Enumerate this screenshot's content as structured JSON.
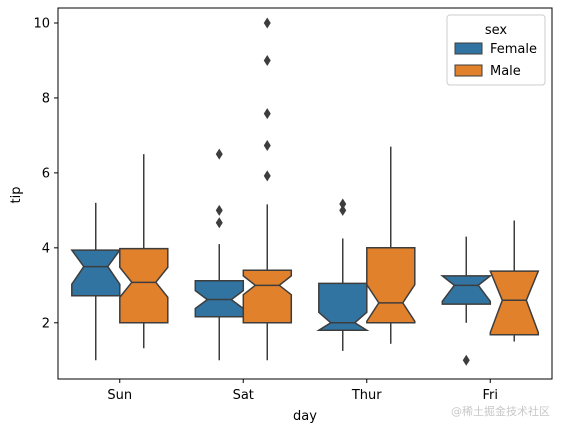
{
  "chart_data": {
    "type": "boxplot",
    "xlabel": "day",
    "ylabel": "tip",
    "categories": [
      "Sun",
      "Sat",
      "Thur",
      "Fri"
    ],
    "notched": true,
    "ylim": [
      0.5,
      10.4
    ],
    "yticks": [
      2,
      4,
      6,
      8,
      10
    ],
    "grid": false,
    "legend": {
      "title": "sex",
      "placement": "top-right"
    },
    "series": [
      {
        "name": "Female",
        "color": "#3274a1",
        "boxes": [
          {
            "min": 1.0,
            "q1": 2.72,
            "median": 3.5,
            "q3": 3.94,
            "max": 5.2,
            "notch_low": 3.03,
            "notch_high": 3.97,
            "outliers": []
          },
          {
            "min": 1.0,
            "q1": 2.16,
            "median": 2.62,
            "q3": 3.12,
            "max": 4.1,
            "notch_low": 2.38,
            "notch_high": 2.86,
            "outliers": [
              4.67,
              5.0,
              6.5
            ]
          },
          {
            "min": 1.25,
            "q1": 1.8,
            "median": 2.0,
            "q3": 3.05,
            "max": 4.25,
            "notch_low": 1.72,
            "notch_high": 2.28,
            "outliers": [
              5.0,
              5.17
            ]
          },
          {
            "min": 2.0,
            "q1": 2.5,
            "median": 3.0,
            "q3": 3.25,
            "max": 4.3,
            "notch_low": 2.57,
            "notch_high": 3.43,
            "outliers": [
              1.0
            ]
          }
        ]
      },
      {
        "name": "Male",
        "color": "#e1812c",
        "boxes": [
          {
            "min": 1.32,
            "q1": 2.0,
            "median": 3.08,
            "q3": 3.98,
            "max": 6.5,
            "notch_low": 2.68,
            "notch_high": 3.48,
            "outliers": []
          },
          {
            "min": 1.0,
            "q1": 2.0,
            "median": 3.0,
            "q3": 3.4,
            "max": 5.16,
            "notch_low": 2.75,
            "notch_high": 3.25,
            "outliers": [
              5.92,
              6.73,
              7.58,
              9.0,
              10.0
            ]
          },
          {
            "min": 1.44,
            "q1": 2.0,
            "median": 2.53,
            "q3": 4.0,
            "max": 6.7,
            "notch_low": 2.04,
            "notch_high": 3.02,
            "outliers": []
          },
          {
            "min": 1.5,
            "q1": 1.68,
            "median": 2.6,
            "q3": 3.38,
            "max": 4.73,
            "notch_low": 1.74,
            "notch_high": 3.46,
            "outliers": []
          }
        ]
      }
    ]
  },
  "watermark": "@稀土掘金技术社区"
}
